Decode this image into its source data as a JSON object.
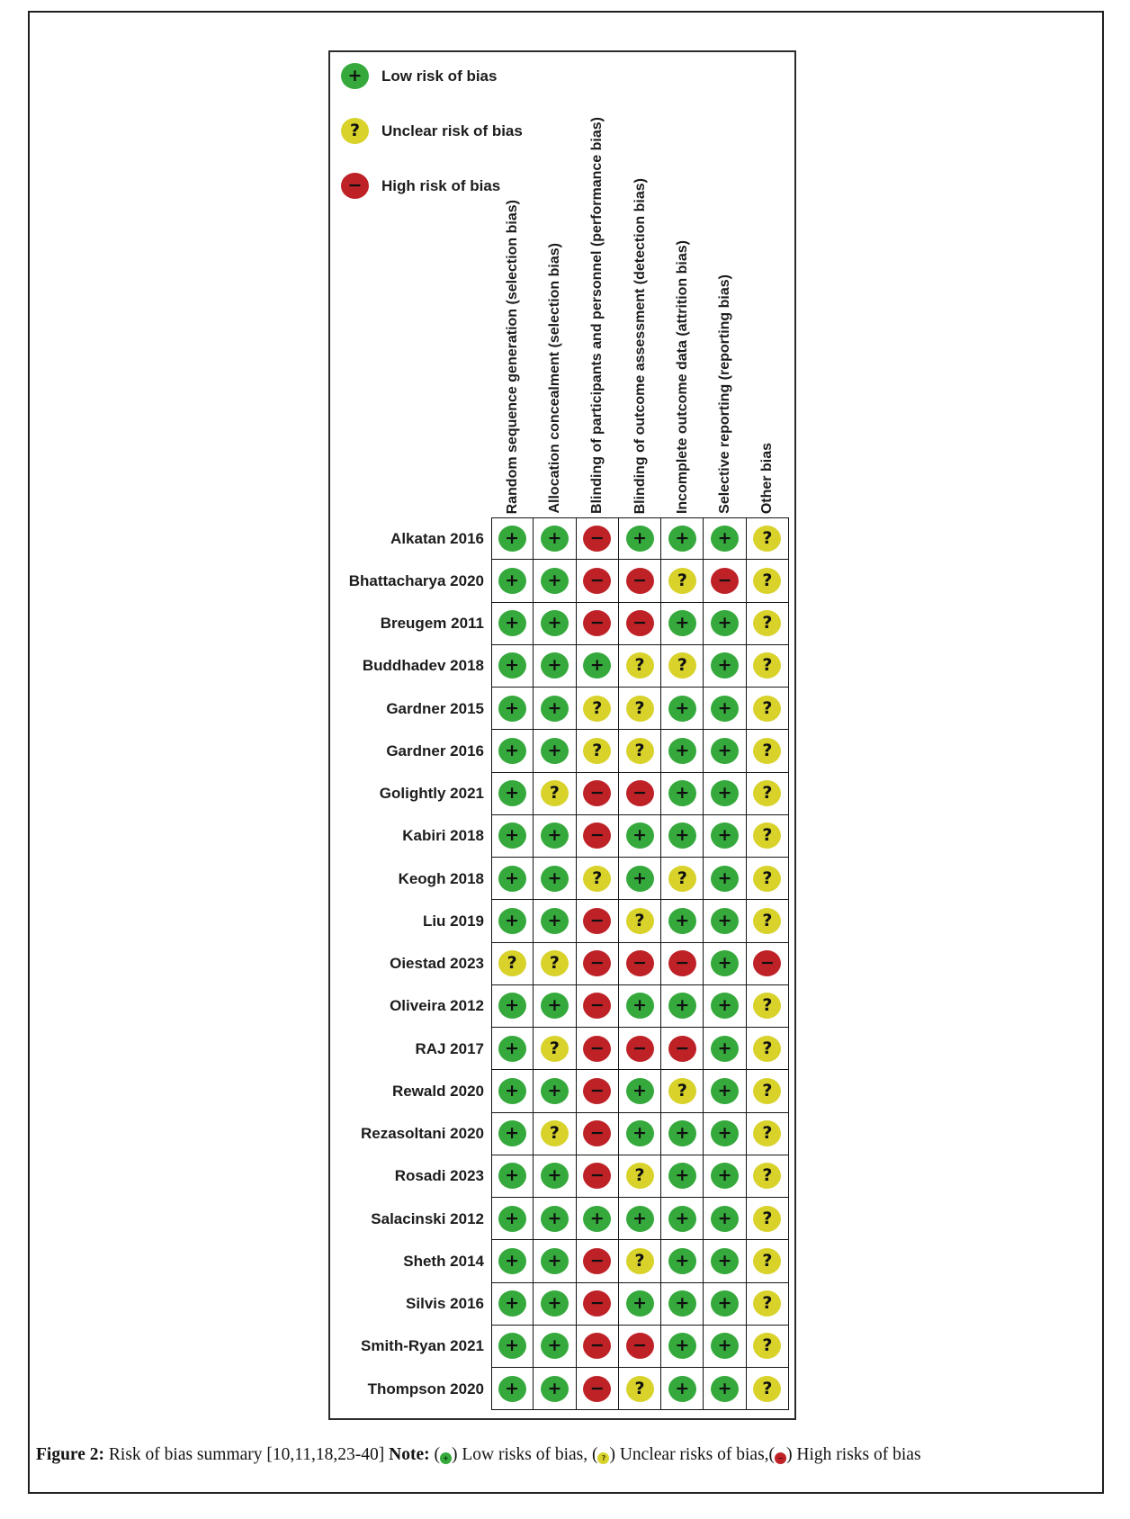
{
  "figure": {
    "legend": [
      {
        "risk": "low",
        "symbol": "+",
        "label": "Low risk of bias"
      },
      {
        "risk": "unclear",
        "symbol": "?",
        "label": "Unclear risk of bias"
      },
      {
        "risk": "high",
        "symbol": "-",
        "label": "High risk of bias"
      }
    ],
    "colors": {
      "low": "#35a93c",
      "unclear": "#d8d22b",
      "high": "#be2227"
    }
  },
  "chart_data": {
    "type": "table",
    "title": "Risk of bias summary",
    "value_legend": {
      "+": "Low risk of bias",
      "?": "Unclear risk of bias",
      "-": "High risk of bias"
    },
    "columns": [
      "Random sequence generation (selection bias)",
      "Allocation concealment (selection bias)",
      "Blinding of participants and personnel (performance bias)",
      "Blinding of outcome assessment (detection bias)",
      "Incomplete outcome data (attrition bias)",
      "Selective reporting (reporting bias)",
      "Other bias"
    ],
    "rows": [
      {
        "study": "Alkatan 2016",
        "values": [
          "+",
          "+",
          "-",
          "+",
          "+",
          "+",
          "?"
        ]
      },
      {
        "study": "Bhattacharya 2020",
        "values": [
          "+",
          "+",
          "-",
          "-",
          "?",
          "-",
          "?"
        ]
      },
      {
        "study": "Breugem 2011",
        "values": [
          "+",
          "+",
          "-",
          "-",
          "+",
          "+",
          "?"
        ]
      },
      {
        "study": "Buddhadev 2018",
        "values": [
          "+",
          "+",
          "+",
          "?",
          "?",
          "+",
          "?"
        ]
      },
      {
        "study": "Gardner 2015",
        "values": [
          "+",
          "+",
          "?",
          "?",
          "+",
          "+",
          "?"
        ]
      },
      {
        "study": "Gardner 2016",
        "values": [
          "+",
          "+",
          "?",
          "?",
          "+",
          "+",
          "?"
        ]
      },
      {
        "study": "Golightly 2021",
        "values": [
          "+",
          "?",
          "-",
          "-",
          "+",
          "+",
          "?"
        ]
      },
      {
        "study": "Kabiri 2018",
        "values": [
          "+",
          "+",
          "-",
          "+",
          "+",
          "+",
          "?"
        ]
      },
      {
        "study": "Keogh 2018",
        "values": [
          "+",
          "+",
          "?",
          "+",
          "?",
          "+",
          "?"
        ]
      },
      {
        "study": "Liu 2019",
        "values": [
          "+",
          "+",
          "-",
          "?",
          "+",
          "+",
          "?"
        ]
      },
      {
        "study": "Oiestad 2023",
        "values": [
          "?",
          "?",
          "-",
          "-",
          "-",
          "+",
          "-"
        ]
      },
      {
        "study": "Oliveira 2012",
        "values": [
          "+",
          "+",
          "-",
          "+",
          "+",
          "+",
          "?"
        ]
      },
      {
        "study": "RAJ 2017",
        "values": [
          "+",
          "?",
          "-",
          "-",
          "-",
          "+",
          "?"
        ]
      },
      {
        "study": "Rewald 2020",
        "values": [
          "+",
          "+",
          "-",
          "+",
          "?",
          "+",
          "?"
        ]
      },
      {
        "study": "Rezasoltani 2020",
        "values": [
          "+",
          "?",
          "-",
          "+",
          "+",
          "+",
          "?"
        ]
      },
      {
        "study": "Rosadi 2023",
        "values": [
          "+",
          "+",
          "-",
          "?",
          "+",
          "+",
          "?"
        ]
      },
      {
        "study": "Salacinski 2012",
        "values": [
          "+",
          "+",
          "+",
          "+",
          "+",
          "+",
          "?"
        ]
      },
      {
        "study": "Sheth 2014",
        "values": [
          "+",
          "+",
          "-",
          "?",
          "+",
          "+",
          "?"
        ]
      },
      {
        "study": "Silvis 2016",
        "values": [
          "+",
          "+",
          "-",
          "+",
          "+",
          "+",
          "?"
        ]
      },
      {
        "study": "Smith-Ryan 2021",
        "values": [
          "+",
          "+",
          "-",
          "-",
          "+",
          "+",
          "?"
        ]
      },
      {
        "study": "Thompson 2020",
        "values": [
          "+",
          "+",
          "-",
          "?",
          "+",
          "+",
          "?"
        ]
      }
    ]
  },
  "caption": {
    "segments": [
      {
        "text": "Figure 2: ",
        "bold": true
      },
      {
        "text": "Risk of bias summary [10,11,18,23-40] ",
        "bold": false
      },
      {
        "text": "Note: ",
        "bold": true
      },
      {
        "text": "(",
        "bold": false
      },
      {
        "dot": "low",
        "symbol": "+"
      },
      {
        "text": ") Low risks of bias, (",
        "bold": false
      },
      {
        "dot": "unclear",
        "symbol": "?"
      },
      {
        "text": ") Unclear risks of bias,(",
        "bold": false
      },
      {
        "dot": "high",
        "symbol": "-"
      },
      {
        "text": ") High risks of bias",
        "bold": false
      }
    ]
  }
}
